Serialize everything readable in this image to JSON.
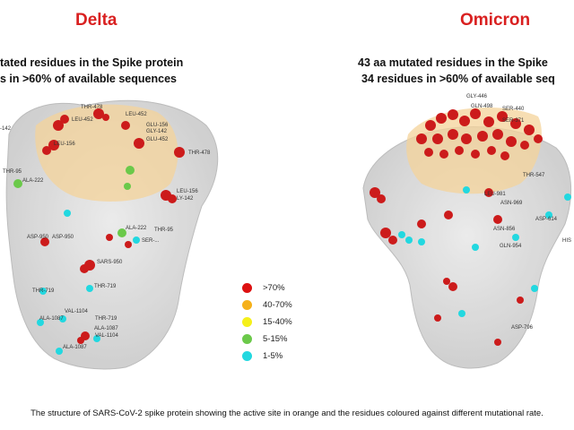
{
  "panels": {
    "left": {
      "title": "Delta",
      "title_color": "#d92020",
      "line1": "tated residues in the Spike protein",
      "line2": "s in >60% of available sequences",
      "labels": [
        "THR-478",
        "LEU-452",
        "LEU-452",
        "GLU-156",
        "GLY-142",
        "GLU-452",
        "THR-478",
        "LEU-156",
        "-142",
        "THR-95",
        "ALA-222",
        "LEU-156",
        "LY-142",
        "ALA-222",
        "THR-95",
        "ASP-950",
        "SARS-950",
        "SER-...",
        "THR-719",
        "THR-719",
        "VAL-1104",
        "THR-719",
        "ALA-1087",
        "ALA-1087",
        "VAL-1104",
        "ALA-1087",
        "ASP-950"
      ]
    },
    "right": {
      "title": "Omicron",
      "title_color": "#d92020",
      "line1": "43 aa mutated residues in the Spike",
      "line2": "34 residues in >60% of available seq",
      "labels": [
        "GLY-446",
        "GLN-498",
        "SER-440",
        "SER-371",
        "THR-547",
        "LEU-981",
        "ASN-969",
        "ASP-614",
        "ASN-856",
        "HIS",
        "GLN-954",
        "ASP-796"
      ]
    }
  },
  "legend": [
    {
      "label": ">70%",
      "color": "#dd1111"
    },
    {
      "label": "40-70%",
      "color": "#f5b01a"
    },
    {
      "label": "15-40%",
      "color": "#f5f01a"
    },
    {
      "label": "5-15%",
      "color": "#6bc94a"
    },
    {
      "label": "1-5%",
      "color": "#22d8e0"
    }
  ],
  "caption": "The structure of SARS-CoV-2 spike protein showing the active site in orange and the residues coloured against different mutational rate."
}
